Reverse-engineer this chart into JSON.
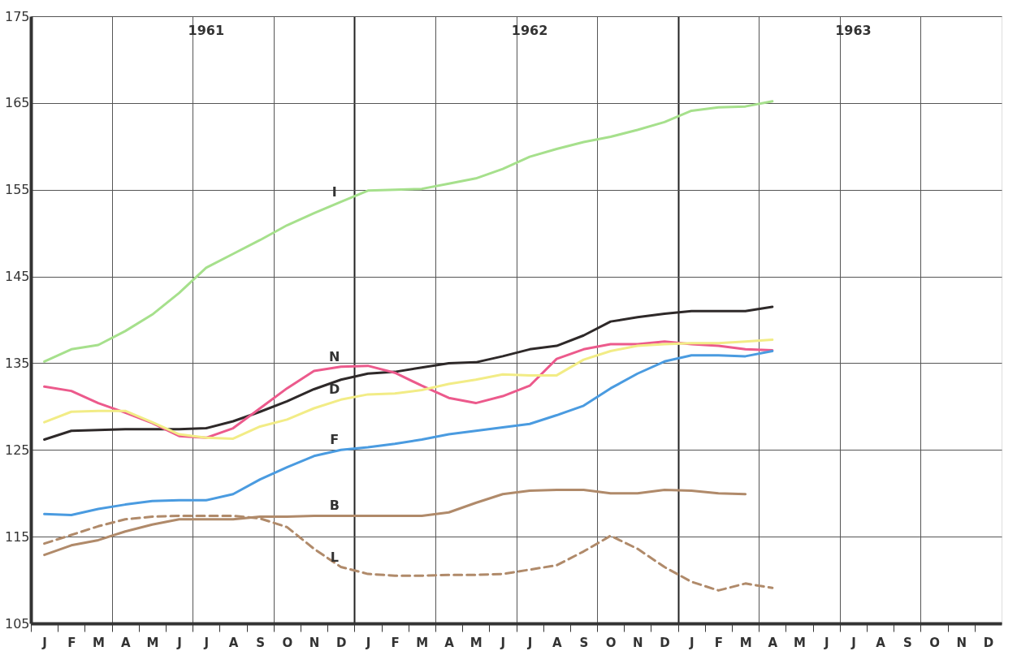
{
  "chart_data": {
    "type": "line",
    "categories": [
      "J",
      "F",
      "M",
      "A",
      "M",
      "J",
      "J",
      "A",
      "S",
      "O",
      "N",
      "D",
      "J",
      "F",
      "M",
      "A",
      "M",
      "J",
      "J",
      "A",
      "S",
      "O",
      "N",
      "D",
      "J",
      "F",
      "M",
      "A",
      "M",
      "J",
      "J",
      "A",
      "S",
      "O",
      "N",
      "D"
    ],
    "annotations": [
      "1961",
      "1962",
      "1963"
    ],
    "series": [
      {
        "name": "I",
        "color": "#a6e08c",
        "values": [
          135.2,
          136.6,
          137.1,
          138.7,
          140.6,
          143.1,
          146.0,
          147.6,
          149.2,
          150.9,
          152.3,
          153.6,
          154.9,
          155.0,
          155.1,
          155.7,
          156.3,
          157.4,
          158.8,
          159.7,
          160.5,
          161.1,
          161.9,
          162.8,
          164.1,
          164.5,
          164.6,
          165.2,
          null,
          null,
          null,
          null,
          null,
          null,
          null,
          null
        ]
      },
      {
        "color": "#2e2929",
        "values": [
          126.2,
          127.2,
          127.3,
          127.4,
          127.4,
          127.4,
          127.5,
          128.3,
          129.4,
          130.6,
          132.0,
          133.1,
          133.8,
          134.0,
          134.5,
          135.0,
          135.1,
          135.8,
          136.6,
          137.0,
          138.2,
          139.8,
          140.3,
          140.7,
          141.0,
          141.0,
          141.0,
          141.5,
          null,
          null,
          null,
          null,
          null,
          null,
          null,
          null
        ]
      },
      {
        "name": "N",
        "color": "#ec5a8c",
        "values": [
          132.3,
          131.8,
          130.4,
          129.3,
          128.1,
          126.6,
          126.4,
          127.5,
          129.8,
          132.1,
          134.1,
          134.6,
          134.7,
          133.9,
          132.4,
          131.0,
          130.4,
          131.2,
          132.4,
          135.5,
          136.6,
          137.2,
          137.2,
          137.5,
          137.2,
          137.0,
          136.6,
          136.5,
          null,
          null,
          null,
          null,
          null,
          null,
          null,
          null
        ]
      },
      {
        "name": "D",
        "color": "#f2ec86",
        "values": [
          128.2,
          129.4,
          129.5,
          129.5,
          128.2,
          126.8,
          126.4,
          126.3,
          127.7,
          128.5,
          129.8,
          130.8,
          131.4,
          131.5,
          131.9,
          132.6,
          133.1,
          133.7,
          133.6,
          133.6,
          135.4,
          136.4,
          137.0,
          137.2,
          137.3,
          137.3,
          137.5,
          137.7,
          null,
          null,
          null,
          null,
          null,
          null,
          null,
          null
        ]
      },
      {
        "name": "F",
        "color": "#4a9be0",
        "values": [
          117.6,
          117.5,
          118.2,
          118.7,
          119.1,
          119.2,
          119.2,
          119.9,
          121.6,
          123.0,
          124.3,
          125.0,
          125.3,
          125.7,
          126.2,
          126.8,
          127.2,
          127.6,
          128.0,
          129.0,
          130.1,
          132.1,
          133.8,
          135.2,
          135.9,
          135.9,
          135.8,
          136.4,
          null,
          null,
          null,
          null,
          null,
          null,
          null,
          null
        ]
      },
      {
        "name": "B",
        "color": "#b08a6a",
        "values": [
          112.9,
          114.0,
          114.6,
          115.6,
          116.4,
          117.0,
          117.0,
          117.0,
          117.3,
          117.3,
          117.4,
          117.4,
          117.4,
          117.4,
          117.4,
          117.8,
          118.9,
          119.9,
          120.3,
          120.4,
          120.4,
          120.0,
          120.0,
          120.4,
          120.3,
          120.0,
          119.9,
          null,
          null,
          null,
          null,
          null,
          null,
          null,
          null,
          null
        ]
      },
      {
        "name": "L",
        "color": "#b08a6a",
        "line_style": "dashed",
        "values": [
          114.2,
          115.2,
          116.2,
          117.0,
          117.3,
          117.4,
          117.4,
          117.4,
          117.1,
          116.1,
          113.6,
          111.5,
          110.7,
          110.5,
          110.5,
          110.6,
          110.6,
          110.7,
          111.2,
          111.7,
          113.3,
          115.1,
          113.6,
          111.5,
          109.8,
          108.8,
          109.6,
          109.1,
          null,
          null,
          null,
          null,
          null,
          null,
          null,
          null
        ]
      }
    ],
    "ylim": [
      105,
      175
    ],
    "yticks": [
      105,
      115,
      125,
      135,
      145,
      155,
      165,
      175
    ],
    "grid": true,
    "marker": "none",
    "line_style": "solid"
  }
}
